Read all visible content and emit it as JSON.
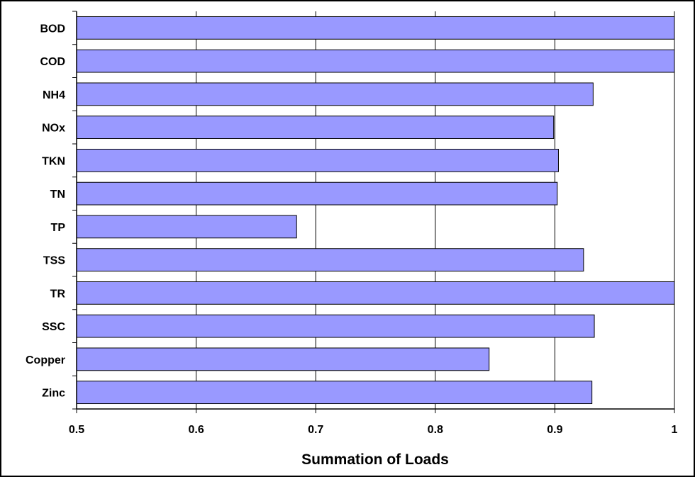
{
  "chart_data": {
    "type": "bar",
    "orientation": "horizontal",
    "title": "",
    "xlabel": "Summation of Loads",
    "ylabel": "",
    "xlim": [
      0.5,
      1
    ],
    "x_ticks": [
      "0.5",
      "0.6",
      "0.7",
      "0.8",
      "0.9",
      "1"
    ],
    "categories": [
      "BOD",
      "COD",
      "NH4",
      "NOx",
      "TKN",
      "TN",
      "TP",
      "TSS",
      "TR",
      "SSC",
      "Copper",
      "Zinc"
    ],
    "values": [
      1.0,
      1.0,
      0.932,
      0.899,
      0.903,
      0.902,
      0.684,
      0.924,
      1.0,
      0.933,
      0.845,
      0.931
    ],
    "bar_color": "#9999ff",
    "grid": "vertical gridlines",
    "legend": "none"
  }
}
